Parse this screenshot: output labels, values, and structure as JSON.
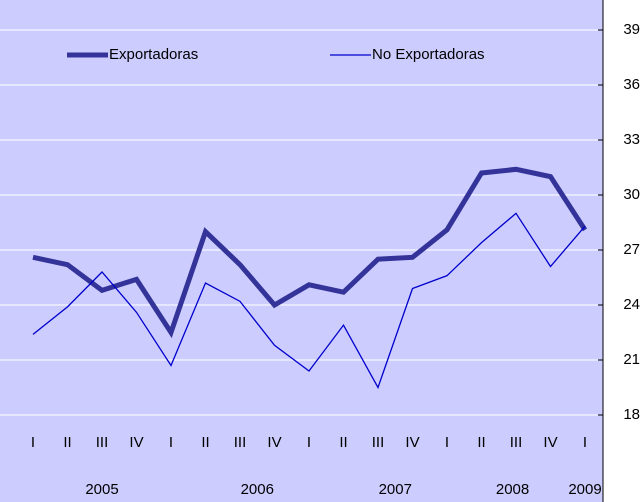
{
  "chart_data": {
    "type": "line",
    "categories": [
      "I",
      "II",
      "III",
      "IV",
      "I",
      "II",
      "III",
      "IV",
      "I",
      "II",
      "III",
      "IV",
      "I",
      "II",
      "III",
      "IV",
      "I"
    ],
    "years": [
      "2005",
      "2006",
      "2007",
      "2008",
      "2009"
    ],
    "series": [
      {
        "name": "Exportadoras",
        "color": "#333399",
        "values": [
          26.6,
          26.2,
          24.8,
          25.4,
          22.5,
          28.0,
          26.2,
          24.0,
          25.1,
          24.7,
          26.5,
          26.6,
          28.1,
          31.2,
          31.4,
          31.0,
          28.1
        ]
      },
      {
        "name": "No Exportadoras",
        "color": "#0000cc",
        "values": [
          22.4,
          23.9,
          25.8,
          23.6,
          20.7,
          25.2,
          24.2,
          21.8,
          20.4,
          22.9,
          19.5,
          24.9,
          25.6,
          27.4,
          29.0,
          26.1,
          28.3
        ]
      }
    ],
    "ylim": [
      18,
      39
    ],
    "yticks": [
      18,
      21,
      24,
      27,
      30,
      33,
      36,
      39
    ],
    "grid": true,
    "legend": "top"
  }
}
